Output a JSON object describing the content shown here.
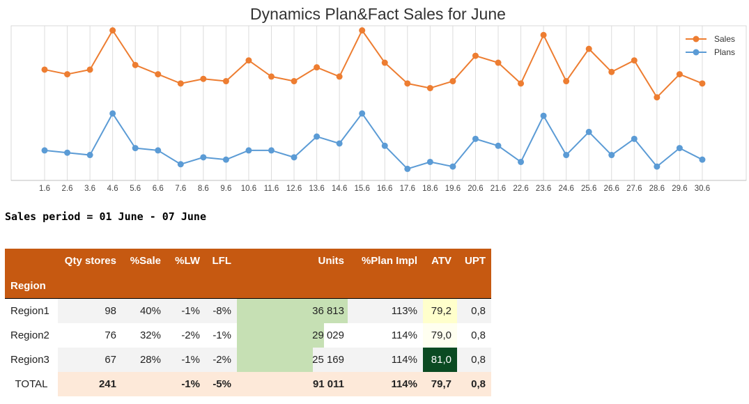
{
  "chart_data": {
    "type": "line",
    "title": "Dynamics Plan&Fact Sales for June",
    "legend_position": "top-right",
    "categories": [
      "1.6",
      "2.6",
      "3.6",
      "4.6",
      "5.6",
      "6.6",
      "7.6",
      "8.6",
      "9.6",
      "10.6",
      "11.6",
      "12.6",
      "13.6",
      "14.6",
      "15.6",
      "16.6",
      "17.6",
      "18.6",
      "19.6",
      "20.6",
      "21.6",
      "22.6",
      "23.6",
      "24.6",
      "25.6",
      "26.6",
      "27.6",
      "28.6",
      "29.6",
      "30.6"
    ],
    "series": [
      {
        "name": "Sales",
        "color": "#ed7d31",
        "values": [
          81,
          79,
          81,
          98,
          83,
          79,
          75,
          77,
          76,
          85,
          78,
          76,
          82,
          78,
          98,
          84,
          75,
          73,
          76,
          87,
          84,
          75,
          96,
          76,
          90,
          80,
          85,
          69,
          79,
          75
        ]
      },
      {
        "name": "Plans",
        "color": "#5b9bd5",
        "values": [
          46,
          45,
          44,
          62,
          47,
          46,
          40,
          43,
          42,
          46,
          46,
          43,
          52,
          49,
          62,
          48,
          38,
          41,
          39,
          51,
          48,
          41,
          61,
          44,
          54,
          44,
          51,
          39,
          47,
          42
        ]
      }
    ],
    "ylim": [
      33,
      100
    ],
    "grid": "vertical"
  },
  "period_text": "Sales period = 01 June - 07 June",
  "table": {
    "headers": {
      "qty": "Qty stores",
      "sale": "%Sale",
      "lw": "%LW",
      "lfl": "LFL",
      "units": "Units",
      "plan": "%Plan Impl",
      "atv": "ATV",
      "upt": "UPT",
      "region": "Region"
    },
    "rows": [
      {
        "region": "Region1",
        "qty": "98",
        "sale": "40%",
        "lw": "-1%",
        "lfl": "-8%",
        "units": "36 813",
        "units_value": 36813,
        "plan": "113%",
        "atv": "79,2",
        "upt": "0,8",
        "atv_color": "#ffffcc"
      },
      {
        "region": "Region2",
        "qty": "76",
        "sale": "32%",
        "lw": "-2%",
        "lfl": "-1%",
        "units": "29 029",
        "units_value": 29029,
        "plan": "114%",
        "atv": "79,0",
        "upt": "0,8",
        "atv_color": "#fffff0"
      },
      {
        "region": "Region3",
        "qty": "67",
        "sale": "28%",
        "lw": "-1%",
        "lfl": "-2%",
        "units": "25 169",
        "units_value": 25169,
        "plan": "114%",
        "atv": "81,0",
        "upt": "0,8",
        "atv_color": "#0b4a22"
      }
    ],
    "total": {
      "region": "TOTAL",
      "qty": "241",
      "sale": "",
      "lw": "-1%",
      "lfl": "-5%",
      "units": "91 011",
      "plan": "114%",
      "atv": "79,7",
      "upt": "0,8"
    }
  }
}
